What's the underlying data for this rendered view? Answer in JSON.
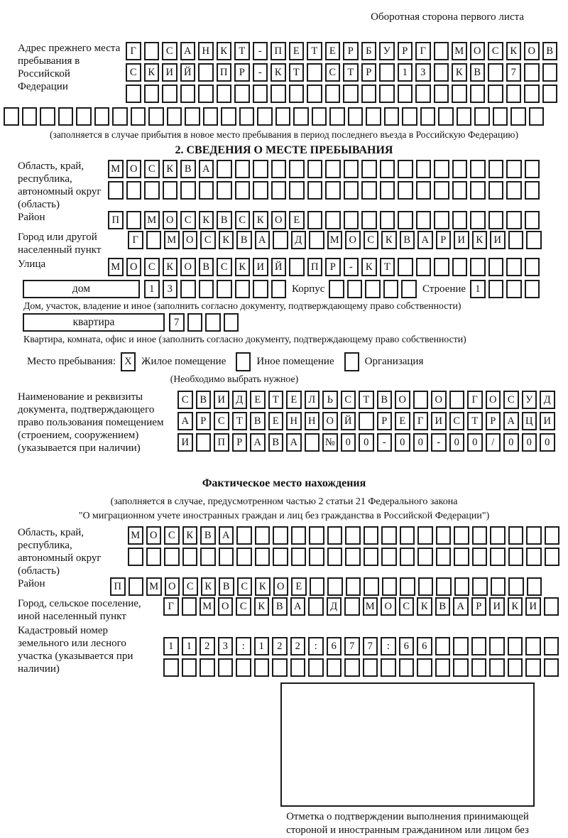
{
  "header": {
    "note": "Оборотная сторона первого листа"
  },
  "prev_address": {
    "label": "Адрес прежнего места пребывания в Российской Федерации",
    "rows": [
      "Г САНКТ-ПЕТЕРБУРГ МОСКОВ",
      "СКИЙ ПР-КТ СТР 13 КВ 7  ",
      "                        "
    ],
    "extra_row": "                              ",
    "note": "(заполняется в случае прибытия в новое место пребывания в период последнего въезда в Российскую Федерацию)"
  },
  "section2": {
    "title": "2. СВЕДЕНИЯ О МЕСТЕ ПРЕБЫВАНИЯ",
    "region": {
      "label": "Область, край, республика, автономный округ (область)",
      "rows": [
        "МОСКВА                  ",
        "                        "
      ]
    },
    "district": {
      "label": "Район",
      "row": "П МОСКВСКОЕ             "
    },
    "city": {
      "label": "Город или другой населенный пункт",
      "row": "Г МОСКВА Д МОСКВАРИКИ  "
    },
    "street": {
      "label": "Улица",
      "row": "МОСКОВСКИЙ ПР-КТ        "
    },
    "house": {
      "box_label": "дом",
      "cells": "13      ",
      "korpus_label": "Корпус",
      "korpus_cells": "     ",
      "stroenie_label": "Строение",
      "stroenie_cells": "1   ",
      "caption": "Дом, участок, владение и иное (заполнить согласно документу, подтверждающему право собственности)"
    },
    "apartment": {
      "box_label": "квартира",
      "cells": "7   ",
      "caption": "Квартира, комната, офис и иное (заполнить согласно документу, подтверждающему право собственности)"
    },
    "stay_type": {
      "label": "Место пребывания:",
      "options": [
        {
          "label": "Жилое помещение",
          "value": "X"
        },
        {
          "label": "Иное помещение",
          "value": ""
        },
        {
          "label": "Организация",
          "value": ""
        }
      ],
      "note": "(Необходимо выбрать нужное)"
    },
    "doc": {
      "label": "Наименование и реквизиты документа, подтверждающего право пользования помещением (строением, сооружением) (указывается при наличии)",
      "rows": [
        "СВИДЕТЕЛЬСТВО О ГОСУД",
        "АРСТВЕННОЙ РЕГИСТРАЦИ",
        "И ПРАВА №00-00-00/000"
      ]
    }
  },
  "actual": {
    "title": "Фактическое место нахождения",
    "note1": "(заполняется в случае, предусмотренном частью 2 статьи 21 Федерального закона",
    "note2": "\"О миграционном учете иностранных граждан и лиц без гражданства в Российской Федерации\")",
    "region": {
      "label": "Область, край, республика, автономный округ (область)",
      "rows": [
        "МОСКВА                  ",
        "                        "
      ]
    },
    "district": {
      "label": "Район",
      "row": "П МОСКВСКОЕ             "
    },
    "city": {
      "label": "Город, сельское поселение, иной населенный пункт",
      "row": "Г МОСКВА Д МОСКВАРИКИ "
    },
    "cadastre": {
      "label": "Кадастровый номер земельного или лесного участка (указывается при наличии)",
      "rows": [
        "1123:122:677:66       ",
        "                      "
      ]
    },
    "stamp_caption": "Отметка о подтверждении выполнения принимающей стороной и иностранным гражданином или лицом без гражданства действий, необходимых для его постановки на учет по месту пребывания"
  }
}
